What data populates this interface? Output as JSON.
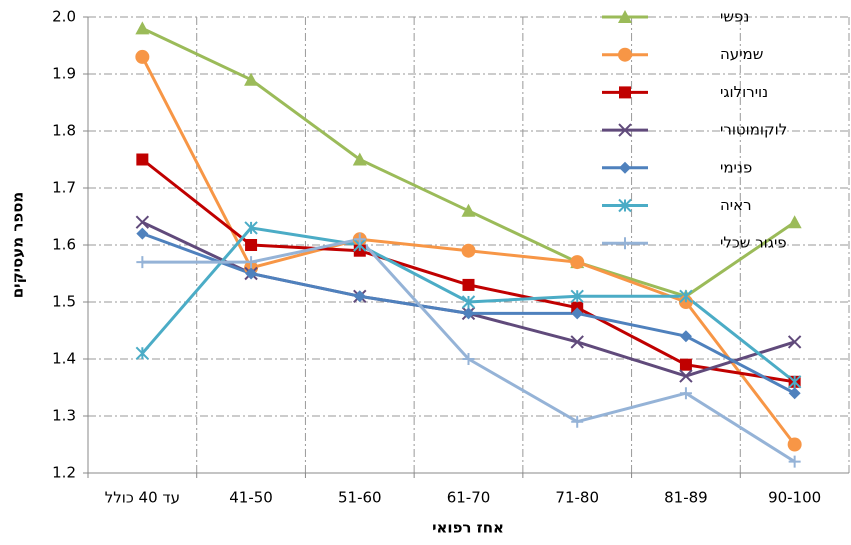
{
  "chart_data": {
    "type": "line",
    "y_label": "מספר מעסיקים",
    "x_label": "אחז רפואי",
    "categories": [
      "עד 40 כולל",
      "41-50",
      "51-60",
      "61-70",
      "71-80",
      "81-89",
      "90-100"
    ],
    "ylim": [
      1.2,
      2.0
    ],
    "yticks": [
      {
        "value": 2.0,
        "label": "2.0"
      },
      1.9,
      1.8,
      1.7,
      1.6,
      1.5,
      1.4,
      1.3,
      1.2
    ],
    "grid": true,
    "legend": "top-right",
    "series": [
      {
        "name": "נפשי",
        "color": "#9bbb59",
        "marker": "triangle",
        "values": [
          1.98,
          1.89,
          1.75,
          1.66,
          1.57,
          1.51,
          1.64
        ]
      },
      {
        "name": "שמיעה",
        "color": "#f79646",
        "marker": "circle",
        "values": [
          1.93,
          1.56,
          1.61,
          1.59,
          1.57,
          1.5,
          1.25
        ]
      },
      {
        "name": "נוירולוגי",
        "color": "#c00000",
        "marker": "square",
        "values": [
          1.75,
          1.6,
          1.59,
          1.53,
          1.49,
          1.39,
          1.36
        ]
      },
      {
        "name": "לוקומוטורי",
        "color": "#604a7b",
        "marker": "x",
        "values": [
          1.64,
          1.55,
          1.51,
          1.48,
          1.43,
          1.37,
          1.43
        ]
      },
      {
        "name": "פנימי",
        "color": "#4f81bd",
        "marker": "diamond",
        "values": [
          1.62,
          1.55,
          1.51,
          1.48,
          1.48,
          1.44,
          1.34
        ]
      },
      {
        "name": "ראיה",
        "color": "#4bacc6",
        "marker": "star",
        "values": [
          1.41,
          1.63,
          1.6,
          1.5,
          1.51,
          1.51,
          1.36
        ]
      },
      {
        "name": "פיגור שכלי",
        "color": "#95b3d7",
        "marker": "plus",
        "values": [
          1.57,
          1.57,
          1.61,
          1.4,
          1.29,
          1.34,
          1.22
        ]
      }
    ]
  }
}
